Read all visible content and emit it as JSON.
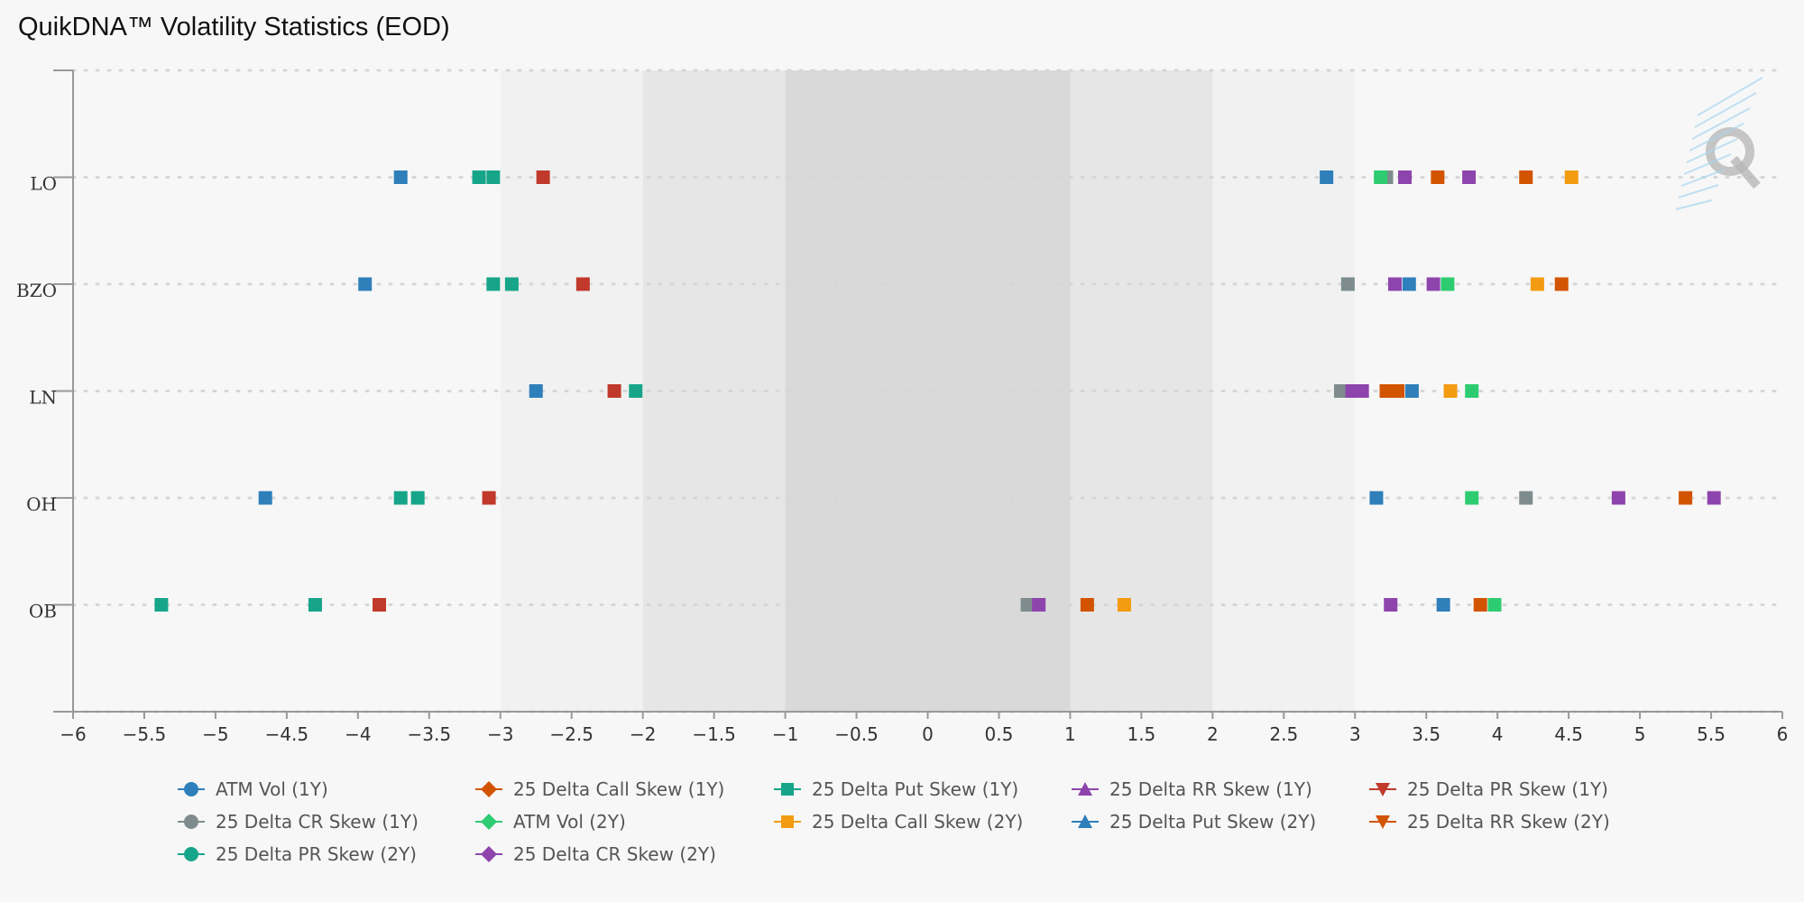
{
  "chart_data": {
    "type": "scatter",
    "title": "QuikDNA™ Volatility Statistics (EOD)",
    "xlabel": "",
    "ylabel": "",
    "xlim": [
      -6,
      6
    ],
    "x_ticks": [
      -6,
      -5.5,
      -5,
      -4.5,
      -4,
      -3.5,
      -3,
      -2.5,
      -2,
      -1.5,
      -1,
      -0.5,
      0,
      0.5,
      1,
      1.5,
      2,
      2.5,
      3,
      3.5,
      4,
      4.5,
      5,
      5.5,
      6
    ],
    "x_tick_labels": [
      "−6",
      "−5.5",
      "−5",
      "−4.5",
      "−4",
      "−3.5",
      "−3",
      "−2.5",
      "−2",
      "−1.5",
      "−1",
      "−0.5",
      "0",
      "0.5",
      "1",
      "1.5",
      "2",
      "2.5",
      "3",
      "3.5",
      "4",
      "4.5",
      "5",
      "5.5",
      "6"
    ],
    "categories": [
      "LO",
      "BZO",
      "LN",
      "OH",
      "OB"
    ],
    "bands": [
      {
        "from": -3,
        "to": 3,
        "color": "#f1f1f1"
      },
      {
        "from": -2,
        "to": 2,
        "color": "#e6e6e6"
      },
      {
        "from": -1,
        "to": 1,
        "color": "#d9d9d9"
      }
    ],
    "legend_placement": "bottom",
    "series": [
      {
        "name": "ATM Vol (1Y)",
        "color": "#2e7fba",
        "symbol": "circle",
        "values": [
          -3.7,
          -3.95,
          -2.75,
          -4.65,
          null
        ]
      },
      {
        "name": "25 Delta Call Skew (1Y)",
        "color": "#d35400",
        "symbol": "diamond",
        "values": [
          4.2,
          null,
          3.3,
          5.32,
          3.88
        ]
      },
      {
        "name": "25 Delta Put Skew (1Y)",
        "color": "#17a589",
        "symbol": "square",
        "values": [
          -3.05,
          -2.92,
          -2.05,
          -3.58,
          -5.38
        ]
      },
      {
        "name": "25 Delta RR Skew (1Y)",
        "color": "#8e44ad",
        "symbol": "triangle",
        "values": [
          3.8,
          3.55,
          3.05,
          4.85,
          3.25
        ]
      },
      {
        "name": "25 Delta PR Skew (1Y)",
        "color": "#c0392b",
        "symbol": "triangle-down",
        "values": [
          -2.7,
          -2.42,
          -2.2,
          -3.08,
          -3.85
        ]
      },
      {
        "name": "25 Delta CR Skew (1Y)",
        "color": "#7f8c8d",
        "symbol": "circle",
        "values": [
          3.22,
          2.95,
          2.9,
          4.2,
          0.7
        ]
      },
      {
        "name": "ATM Vol (2Y)",
        "color": "#2ecc71",
        "symbol": "diamond",
        "values": [
          3.18,
          3.65,
          3.82,
          3.82,
          3.98
        ]
      },
      {
        "name": "25 Delta Call Skew (2Y)",
        "color": "#f39c12",
        "symbol": "square",
        "values": [
          4.52,
          4.28,
          3.67,
          null,
          1.38
        ]
      },
      {
        "name": "25 Delta Put Skew (2Y)",
        "color": "#2e7fba",
        "symbol": "triangle",
        "values": [
          2.8,
          3.38,
          3.4,
          3.15,
          3.62
        ]
      },
      {
        "name": "25 Delta RR Skew (2Y)",
        "color": "#d35400",
        "symbol": "triangle-down",
        "values": [
          3.58,
          4.45,
          3.22,
          null,
          1.12
        ]
      },
      {
        "name": "25 Delta PR Skew (2Y)",
        "color": "#17a589",
        "symbol": "circle",
        "values": [
          -3.15,
          -3.05,
          null,
          -3.7,
          -4.3
        ]
      },
      {
        "name": "25 Delta CR Skew (2Y)",
        "color": "#8e44ad",
        "symbol": "diamond",
        "values": [
          3.35,
          3.28,
          2.98,
          5.52,
          0.78
        ]
      }
    ]
  }
}
